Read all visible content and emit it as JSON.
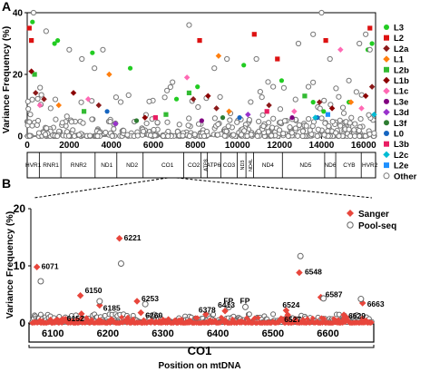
{
  "chart_data": [
    {
      "panel_label": "A",
      "type": "scatter",
      "ylabel": "Variance Frequency (%)",
      "xlim": [
        0,
        16569
      ],
      "ylim": [
        0,
        40
      ],
      "yticks": [
        0,
        20,
        40
      ],
      "xticks": [
        0,
        2000,
        4000,
        6000,
        8000,
        10000,
        12000,
        14000,
        16000
      ],
      "legend_position": "right",
      "legend": [
        {
          "name": "L3",
          "color": "#22cc22",
          "shape": "circle"
        },
        {
          "name": "L2",
          "color": "#dd1111",
          "shape": "square"
        },
        {
          "name": "L2a",
          "color": "#8b1a1a",
          "shape": "diamond"
        },
        {
          "name": "L1",
          "color": "#ff7f0e",
          "shape": "diamond"
        },
        {
          "name": "L2b",
          "color": "#33bb33",
          "shape": "square"
        },
        {
          "name": "L1b",
          "color": "#8b0000",
          "shape": "diamond"
        },
        {
          "name": "L1c",
          "color": "#ff69b4",
          "shape": "diamond"
        },
        {
          "name": "L3e",
          "color": "#800080",
          "shape": "circle"
        },
        {
          "name": "L3d",
          "color": "#9932cc",
          "shape": "diamond"
        },
        {
          "name": "L3f",
          "color": "#2e7d32",
          "shape": "circle"
        },
        {
          "name": "L0",
          "color": "#1565c0",
          "shape": "circle"
        },
        {
          "name": "L3b",
          "color": "#e91e63",
          "shape": "square"
        },
        {
          "name": "L2c",
          "color": "#00bcd4",
          "shape": "diamond"
        },
        {
          "name": "L2e",
          "color": "#1e90ff",
          "shape": "square"
        },
        {
          "name": "Other",
          "color": "#777777",
          "shape": "open-circle"
        }
      ],
      "genes": [
        "HVR1",
        "RNR1",
        "RNR2",
        "ND1",
        "ND2",
        "CO1",
        "CO2",
        "ATP8",
        "ATP6",
        "CO3",
        "ND3",
        "ND4L",
        "ND4",
        "ND5",
        "ND6",
        "CYB",
        "HVR2"
      ],
      "series": [
        {
          "name": "L3",
          "points": [
            [
              250,
              37
            ],
            [
              1300,
              30
            ],
            [
              1450,
              31
            ],
            [
              3100,
              27
            ],
            [
              4900,
              22
            ],
            [
              7100,
              12
            ],
            [
              8100,
              16
            ],
            [
              10300,
              23
            ],
            [
              12100,
              18
            ],
            [
              13600,
              11
            ],
            [
              14100,
              8
            ],
            [
              15300,
              11
            ],
            [
              16200,
              28
            ],
            [
              16400,
              30
            ]
          ]
        },
        {
          "name": "L2",
          "points": [
            [
              100,
              35
            ],
            [
              200,
              31
            ],
            [
              8200,
              31
            ],
            [
              10800,
              33
            ],
            [
              11900,
              25
            ],
            [
              14200,
              31
            ],
            [
              16300,
              35
            ]
          ]
        },
        {
          "name": "L2a",
          "points": [
            [
              400,
              14
            ],
            [
              800,
              12
            ],
            [
              3400,
              10
            ],
            [
              7900,
              12
            ],
            [
              9000,
              9
            ],
            [
              11500,
              10
            ],
            [
              13900,
              11
            ],
            [
              16400,
              16
            ]
          ]
        },
        {
          "name": "L1",
          "points": [
            [
              1500,
              10
            ],
            [
              3900,
              20
            ],
            [
              9100,
              26
            ],
            [
              9600,
              8
            ],
            [
              15400,
              11
            ]
          ]
        },
        {
          "name": "L2b",
          "points": [
            [
              350,
              20
            ],
            [
              2700,
              8
            ],
            [
              6600,
              7
            ],
            [
              7700,
              14
            ],
            [
              13200,
              13
            ]
          ]
        },
        {
          "name": "L1b",
          "points": [
            [
              200,
              21
            ],
            [
              2200,
              14
            ],
            [
              5600,
              6
            ],
            [
              8600,
              13
            ],
            [
              14500,
              9
            ],
            [
              16100,
              13
            ]
          ]
        },
        {
          "name": "L1c",
          "points": [
            [
              600,
              10
            ],
            [
              2900,
              12
            ],
            [
              7600,
              19
            ],
            [
              12700,
              8
            ],
            [
              14900,
              28
            ],
            [
              15900,
              9
            ]
          ]
        },
        {
          "name": "L3e",
          "points": [
            [
              8300,
              5
            ],
            [
              12600,
              6
            ]
          ]
        },
        {
          "name": "L3d",
          "points": [
            [
              4200,
              4
            ],
            [
              10500,
              7
            ]
          ]
        },
        {
          "name": "L3f",
          "points": [
            [
              5200,
              5
            ],
            [
              9300,
              6
            ]
          ]
        },
        {
          "name": "L0",
          "points": [
            [
              3800,
              8
            ],
            [
              10100,
              6
            ],
            [
              13800,
              6
            ]
          ]
        },
        {
          "name": "L3b",
          "points": [
            [
              6100,
              6
            ],
            [
              11400,
              8
            ]
          ]
        },
        {
          "name": "L2c",
          "points": [
            [
              13700,
              6
            ],
            [
              16500,
              7
            ]
          ]
        },
        {
          "name": "L2e",
          "points": [
            [
              14300,
              7
            ]
          ]
        },
        {
          "name": "Other",
          "points": [
            [
              300,
              40
            ],
            [
              900,
              34
            ],
            [
              2000,
              28
            ],
            [
              2600,
              25
            ],
            [
              3200,
              22
            ],
            [
              3600,
              28
            ],
            [
              7700,
              36
            ],
            [
              8900,
              22
            ],
            [
              9500,
              25
            ],
            [
              10900,
              25
            ],
            [
              11700,
              16
            ],
            [
              12900,
              30
            ],
            [
              13600,
              33
            ],
            [
              14000,
              40
            ],
            [
              14400,
              25
            ],
            [
              15300,
              18
            ],
            [
              15800,
              30
            ],
            [
              16100,
              33
            ],
            [
              16300,
              28
            ]
          ]
        }
      ]
    },
    {
      "panel_label": "B",
      "type": "scatter",
      "ylabel": "Variance Frequency (%)",
      "xlabel": "Position on mtDNA",
      "gene_label": "CO1",
      "xlim": [
        6060,
        6680
      ],
      "ylim": [
        0,
        20
      ],
      "yticks": [
        0,
        10,
        20
      ],
      "xticks": [
        6100,
        6200,
        6300,
        6400,
        6500,
        6600
      ],
      "legend_position": "top-right",
      "legend": [
        {
          "name": "Sanger",
          "color": "#e8463c",
          "shape": "diamond"
        },
        {
          "name": "Pool-seq",
          "color": "#666666",
          "shape": "open-circle"
        }
      ],
      "series": [
        {
          "name": "Sanger",
          "points": [
            [
              6071,
              9.8
            ],
            [
              6150,
              4.8
            ],
            [
              6152,
              1.6
            ],
            [
              6185,
              3.1
            ],
            [
              6221,
              14.8
            ],
            [
              6253,
              3.8
            ],
            [
              6260,
              1.8
            ],
            [
              6378,
              1.5
            ],
            [
              6413,
              2.1
            ],
            [
              6524,
              2.2
            ],
            [
              6527,
              1.4
            ],
            [
              6548,
              8.8
            ],
            [
              6587,
              4.5
            ],
            [
              6629,
              1.4
            ],
            [
              6663,
              3.5
            ]
          ]
        },
        {
          "name": "Pool-seq",
          "points": [
            [
              6078,
              7.3
            ],
            [
              6185,
              3.8
            ],
            [
              6224,
              10.4
            ],
            [
              6268,
              3.3
            ],
            [
              6420,
              2.8
            ],
            [
              6450,
              2.8
            ],
            [
              6550,
              11.7
            ],
            [
              6592,
              4.3
            ],
            [
              6660,
              4.2
            ]
          ]
        }
      ],
      "annotations": [
        {
          "text": "6071",
          "x": 6071,
          "y": 9.8
        },
        {
          "text": "6221",
          "x": 6221,
          "y": 14.8
        },
        {
          "text": "6548",
          "x": 6548,
          "y": 8.8
        },
        {
          "text": "6150",
          "x": 6150,
          "y": 4.8
        },
        {
          "text": "6185",
          "x": 6185,
          "y": 3.1
        },
        {
          "text": "6152",
          "x": 6152,
          "y": 1.6
        },
        {
          "text": "6253",
          "x": 6253,
          "y": 3.8
        },
        {
          "text": "6260",
          "x": 6260,
          "y": 1.8
        },
        {
          "text": "6378",
          "x": 6378,
          "y": 1.5
        },
        {
          "text": "6413",
          "x": 6413,
          "y": 2.1
        },
        {
          "text": "FP",
          "x": 6420,
          "y": 2.8
        },
        {
          "text": "FP",
          "x": 6450,
          "y": 2.8
        },
        {
          "text": "6524",
          "x": 6524,
          "y": 2.2
        },
        {
          "text": "6527",
          "x": 6527,
          "y": 1.4
        },
        {
          "text": "6587",
          "x": 6587,
          "y": 4.5
        },
        {
          "text": "6629",
          "x": 6629,
          "y": 1.4
        },
        {
          "text": "6663",
          "x": 6663,
          "y": 3.5
        }
      ]
    }
  ]
}
